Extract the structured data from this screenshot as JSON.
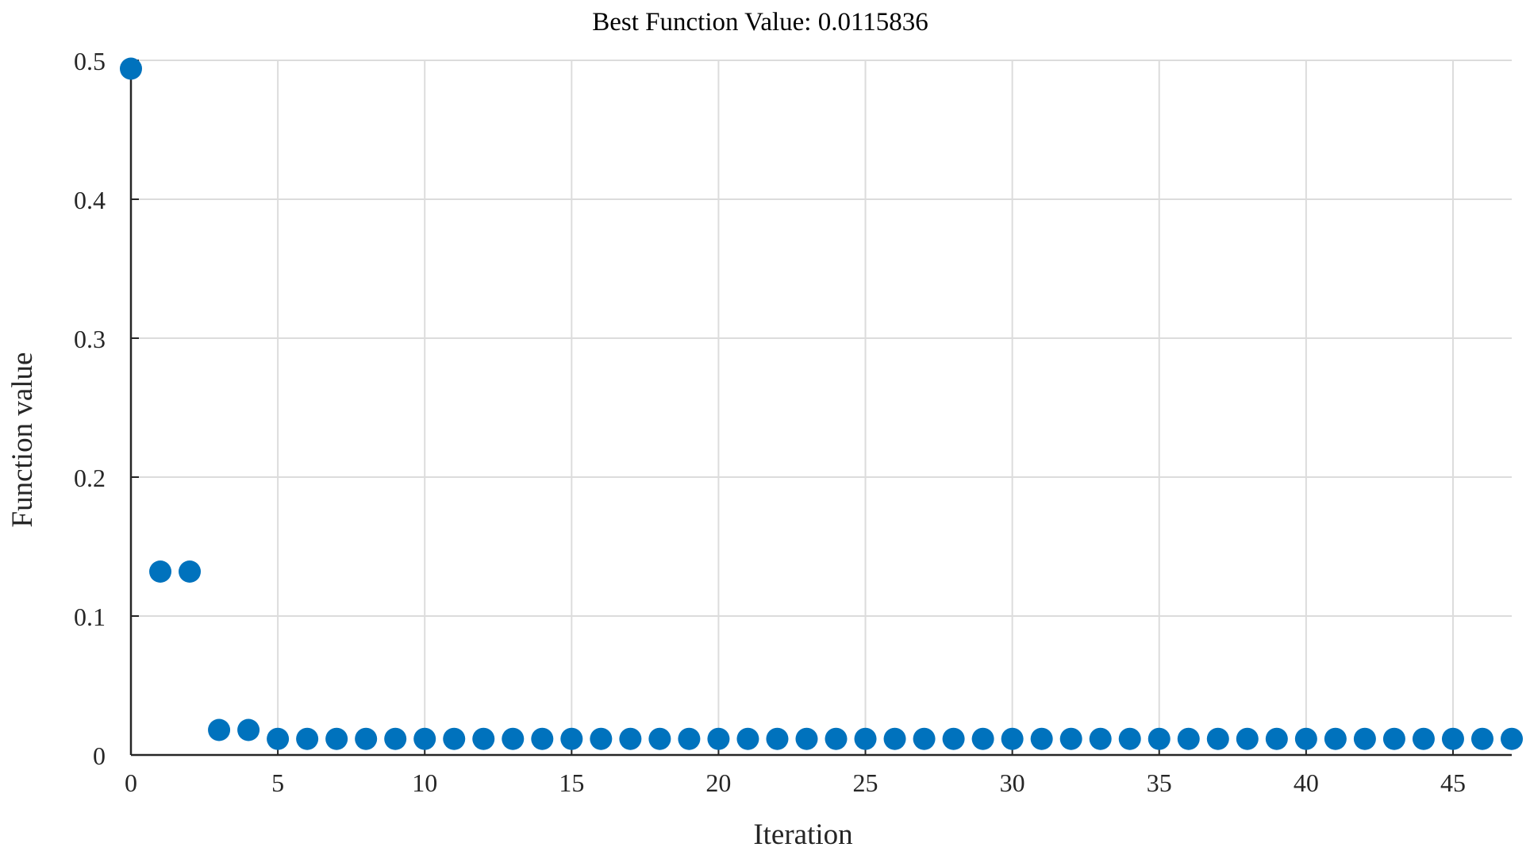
{
  "chart_data": {
    "type": "scatter",
    "title": "Best Function Value: 0.0115836",
    "xlabel": "Iteration",
    "ylabel": "Function value",
    "xlim": [
      0,
      47
    ],
    "ylim": [
      0,
      0.5
    ],
    "xticks": [
      0,
      5,
      10,
      15,
      20,
      25,
      30,
      35,
      40,
      45
    ],
    "yticks": [
      0,
      0.1,
      0.2,
      0.3,
      0.4,
      0.5
    ],
    "grid": true,
    "series": [
      {
        "color": "#0072bd",
        "x": [
          0,
          1,
          2,
          3,
          4,
          5,
          6,
          7,
          8,
          9,
          10,
          11,
          12,
          13,
          14,
          15,
          16,
          17,
          18,
          19,
          20,
          21,
          22,
          23,
          24,
          25,
          26,
          27,
          28,
          29,
          30,
          31,
          32,
          33,
          34,
          35,
          36,
          37,
          38,
          39,
          40,
          41,
          42,
          43,
          44,
          45,
          46,
          47
        ],
        "y": [
          0.494,
          0.132,
          0.132,
          0.018,
          0.018,
          0.0116,
          0.0116,
          0.0116,
          0.0116,
          0.0116,
          0.0116,
          0.0116,
          0.0116,
          0.0116,
          0.0116,
          0.0116,
          0.0116,
          0.0116,
          0.0116,
          0.0116,
          0.0116,
          0.0116,
          0.0116,
          0.0116,
          0.0116,
          0.0116,
          0.0116,
          0.0116,
          0.0116,
          0.0116,
          0.0116,
          0.0116,
          0.0116,
          0.0116,
          0.0116,
          0.0116,
          0.0116,
          0.0116,
          0.0116,
          0.0116,
          0.0116,
          0.0116,
          0.0116,
          0.0116,
          0.0116,
          0.0116,
          0.0116,
          0.0116
        ]
      }
    ]
  }
}
